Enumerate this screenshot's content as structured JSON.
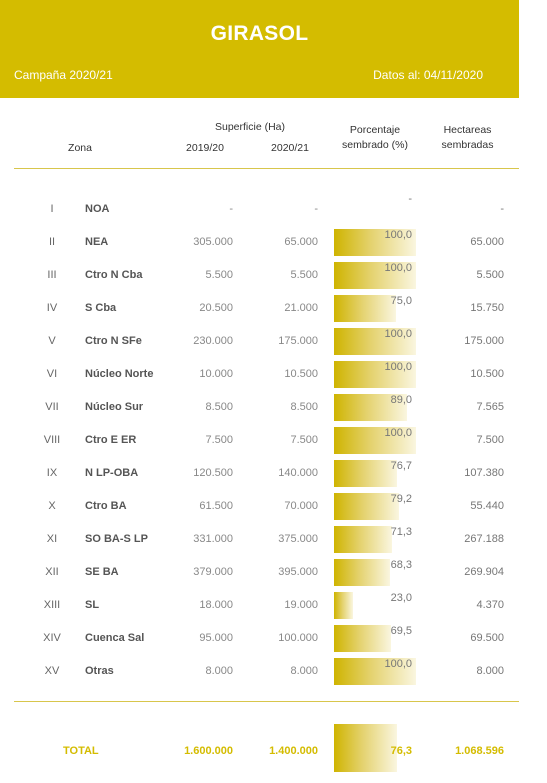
{
  "header": {
    "title": "GIRASOL",
    "campaign": "Campaña 2020/21",
    "data_date": "Datos al: 04/11/2020"
  },
  "columns": {
    "zona": "Zona",
    "superficie": "Superficie (Ha)",
    "year_a": "2019/20",
    "year_b": "2020/21",
    "porcentaje_l1": "Porcentaje",
    "porcentaje_l2": "sembrado (%)",
    "hectareas_l1": "Hectareas",
    "hectareas_l2": "sembradas"
  },
  "rows": [
    {
      "num": "I",
      "zona": "NOA",
      "sup_a": "-",
      "sup_b": "-",
      "pct_label": "-",
      "pct": 0,
      "has": "-"
    },
    {
      "num": "II",
      "zona": "NEA",
      "sup_a": "305.000",
      "sup_b": "65.000",
      "pct_label": "100,0",
      "pct": 100,
      "has": "65.000"
    },
    {
      "num": "III",
      "zona": "Ctro N Cba",
      "sup_a": "5.500",
      "sup_b": "5.500",
      "pct_label": "100,0",
      "pct": 100,
      "has": "5.500"
    },
    {
      "num": "IV",
      "zona": "S Cba",
      "sup_a": "20.500",
      "sup_b": "21.000",
      "pct_label": "75,0",
      "pct": 75,
      "has": "15.750"
    },
    {
      "num": "V",
      "zona": "Ctro N SFe",
      "sup_a": "230.000",
      "sup_b": "175.000",
      "pct_label": "100,0",
      "pct": 100,
      "has": "175.000"
    },
    {
      "num": "VI",
      "zona": "Núcleo Norte",
      "sup_a": "10.000",
      "sup_b": "10.500",
      "pct_label": "100,0",
      "pct": 100,
      "has": "10.500"
    },
    {
      "num": "VII",
      "zona": "Núcleo Sur",
      "sup_a": "8.500",
      "sup_b": "8.500",
      "pct_label": "89,0",
      "pct": 89,
      "has": "7.565"
    },
    {
      "num": "VIII",
      "zona": "Ctro E ER",
      "sup_a": "7.500",
      "sup_b": "7.500",
      "pct_label": "100,0",
      "pct": 100,
      "has": "7.500"
    },
    {
      "num": "IX",
      "zona": "N LP-OBA",
      "sup_a": "120.500",
      "sup_b": "140.000",
      "pct_label": "76,7",
      "pct": 76.7,
      "has": "107.380"
    },
    {
      "num": "X",
      "zona": "Ctro BA",
      "sup_a": "61.500",
      "sup_b": "70.000",
      "pct_label": "79,2",
      "pct": 79.2,
      "has": "55.440"
    },
    {
      "num": "XI",
      "zona": "SO BA-S LP",
      "sup_a": "331.000",
      "sup_b": "375.000",
      "pct_label": "71,3",
      "pct": 71.3,
      "has": "267.188"
    },
    {
      "num": "XII",
      "zona": "SE BA",
      "sup_a": "379.000",
      "sup_b": "395.000",
      "pct_label": "68,3",
      "pct": 68.3,
      "has": "269.904"
    },
    {
      "num": "XIII",
      "zona": "SL",
      "sup_a": "18.000",
      "sup_b": "19.000",
      "pct_label": "23,0",
      "pct": 23,
      "has": "4.370"
    },
    {
      "num": "XIV",
      "zona": "Cuenca Sal",
      "sup_a": "95.000",
      "sup_b": "100.000",
      "pct_label": "69,5",
      "pct": 69.5,
      "has": "69.500"
    },
    {
      "num": "XV",
      "zona": "Otras",
      "sup_a": "8.000",
      "sup_b": "8.000",
      "pct_label": "100,0",
      "pct": 100,
      "has": "8.000"
    }
  ],
  "total": {
    "label": "TOTAL",
    "sup_a": "1.600.000",
    "sup_b": "1.400.000",
    "pct_label": "76,3",
    "pct": 76.3,
    "has": "1.068.596"
  },
  "colors": {
    "accent": "#d4bc00",
    "bar_start": "#cfb400",
    "bar_end": "#faf6e0"
  }
}
